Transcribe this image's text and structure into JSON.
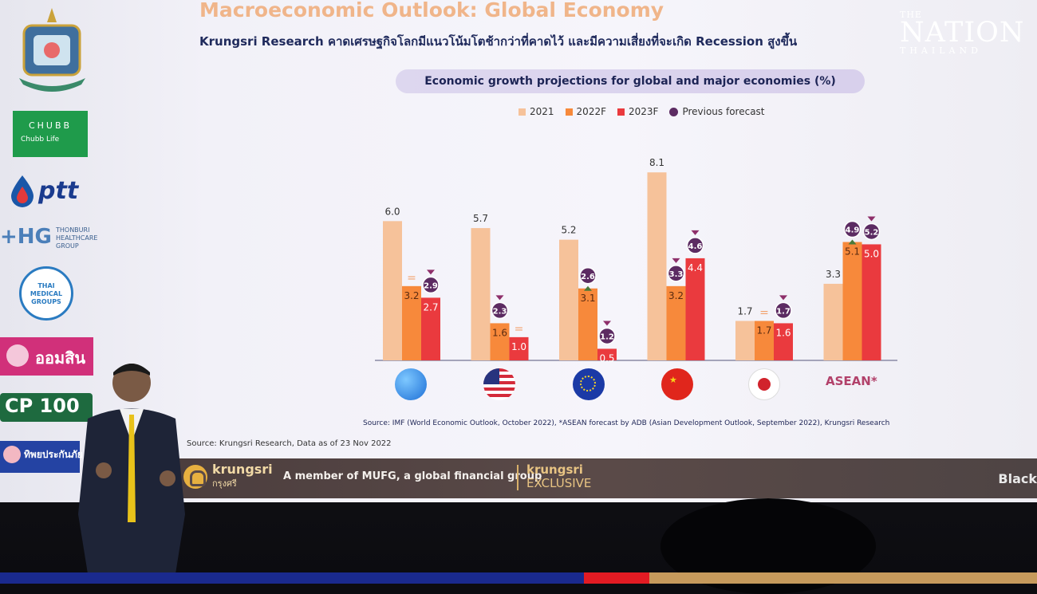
{
  "slide": {
    "title": "Macroeconomic Outlook: Global Economy",
    "subtitle": "Krungsri Research คาดเศรษฐกิจโลกมีแนวโน้มโตช้ากว่าที่คาดไว้ และมีความเสี่ยงที่จะเกิด Recession สูงขึ้น",
    "chart_title": "Economic growth projections for global and major economies (%)",
    "source_note": "Source: IMF (World Economic Outlook, October 2022), *ASEAN forecast by ADB (Asian Development Outlook, September 2022), Krungsri Research",
    "source_date": "Source: Krungsri Research, Data as of 23 Nov 2022"
  },
  "chart_data": {
    "type": "bar",
    "categories": [
      "global-icon",
      "us-flag-icon",
      "eu-flag-icon",
      "china-flag-icon",
      "japan-flag-icon",
      "ASEAN*"
    ],
    "series": [
      {
        "name": "2021",
        "values": [
          6.0,
          5.7,
          5.2,
          8.1,
          1.7,
          3.3
        ],
        "color": "#f6c29a"
      },
      {
        "name": "2022F",
        "values": [
          3.2,
          1.6,
          3.1,
          3.2,
          1.7,
          5.1
        ],
        "color": "#f7893b"
      },
      {
        "name": "2023F",
        "values": [
          2.7,
          1.0,
          0.5,
          4.4,
          1.6,
          5.0
        ],
        "color": "#ea3a3e"
      }
    ],
    "previous_forecast": [
      {
        "category": 0,
        "series": "2022F",
        "mark": "="
      },
      {
        "category": 0,
        "series": "2023F",
        "value": 2.9,
        "mark": "down"
      },
      {
        "category": 1,
        "series": "2022F",
        "value": 2.3,
        "mark": "down"
      },
      {
        "category": 1,
        "series": "2023F",
        "mark": "="
      },
      {
        "category": 2,
        "series": "2022F",
        "value": 2.6,
        "mark": "up"
      },
      {
        "category": 2,
        "series": "2023F",
        "value": 1.2,
        "mark": "down"
      },
      {
        "category": 3,
        "series": "2022F",
        "value": 3.3,
        "mark": "down"
      },
      {
        "category": 3,
        "series": "2023F",
        "value": 4.6,
        "mark": "down"
      },
      {
        "category": 4,
        "series": "2022F",
        "mark": "="
      },
      {
        "category": 4,
        "series": "2023F",
        "value": 1.7,
        "mark": "down"
      },
      {
        "category": 5,
        "series": "2022F",
        "value": 4.9,
        "mark": "up"
      },
      {
        "category": 5,
        "series": "2023F",
        "value": 5.2,
        "mark": "down"
      }
    ],
    "legend": [
      "2021",
      "2022F",
      "2023F",
      "Previous forecast"
    ],
    "legend_position": "top",
    "ylim": [
      0,
      9
    ],
    "grid": false
  },
  "sponsors": [
    "CHUBB",
    "Chubb Life",
    "ptt",
    "THONBURI HEALTHCARE GROUP",
    "THAI MEDICAL GROUPS",
    "ออมสิน",
    "CP 100",
    "ทิพยประกันภัย"
  ],
  "brand_bar": {
    "krungsri": "krungsri",
    "krungsri_thai": "กรุงศรี",
    "member": "A member of MUFG, a global financial group",
    "exclusive_top": "krungsri",
    "exclusive_bottom": "EXCLUSIVE",
    "right": "Black"
  },
  "watermark": {
    "the": "THE",
    "nation": "NATION",
    "thailand": "THAILAND"
  },
  "asean_label": "ASEAN*"
}
